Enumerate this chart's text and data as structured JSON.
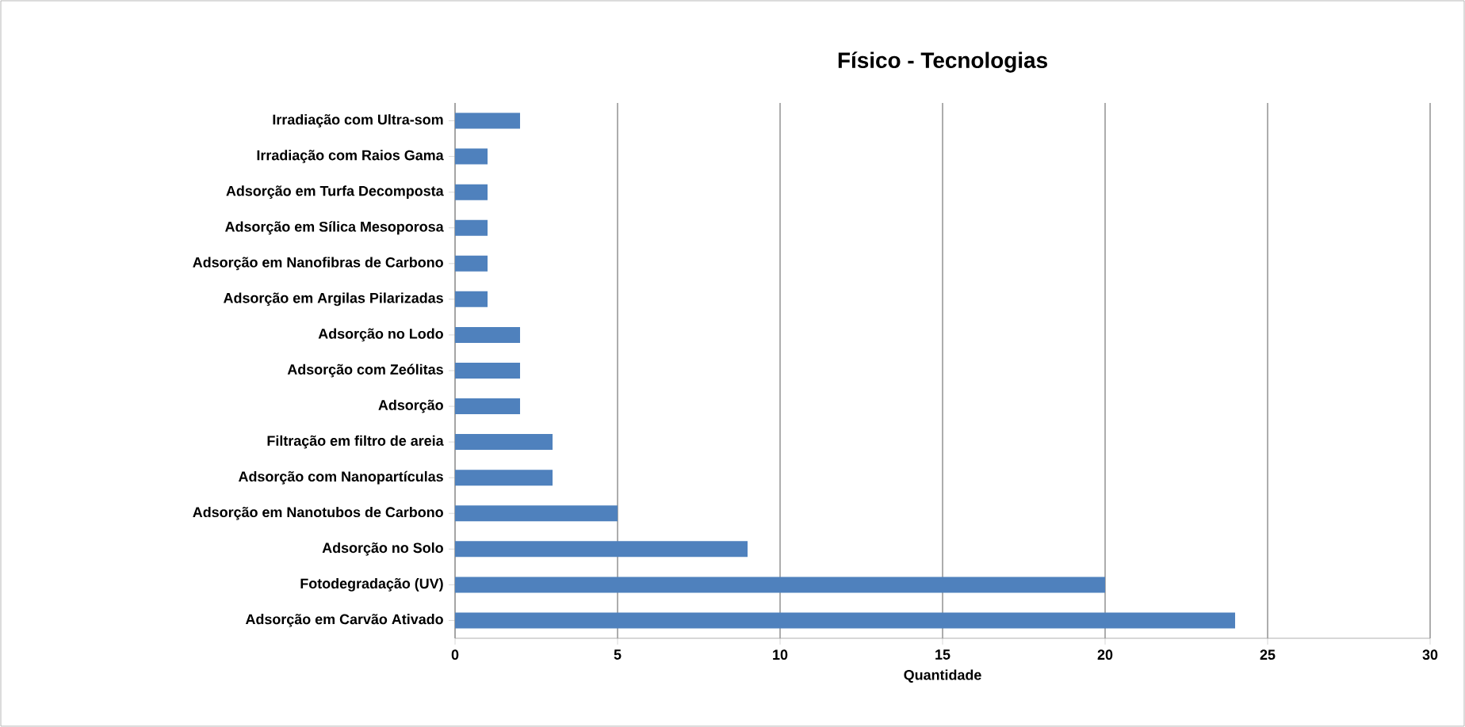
{
  "chart_data": {
    "type": "bar",
    "orientation": "horizontal",
    "title": "Físico - Tecnologias",
    "xlabel": "Quantidade",
    "categories": [
      "Irradiação com Ultra-som",
      "Irradiação com Raios Gama",
      "Adsorção em Turfa Decomposta",
      "Adsorção em Sílica Mesoporosa",
      "Adsorção em Nanofibras de Carbono",
      "Adsorção em Argilas Pilarizadas",
      "Adsorção no Lodo",
      "Adsorção com Zeólitas",
      "Adsorção",
      "Filtração em filtro de areia",
      "Adsorção com Nanopartículas",
      "Adsorção em Nanotubos de Carbono",
      "Adsorção no Solo",
      "Fotodegradação (UV)",
      "Adsorção em Carvão Ativado"
    ],
    "values": [
      2,
      1,
      1,
      1,
      1,
      1,
      2,
      2,
      2,
      3,
      3,
      5,
      9,
      20,
      24
    ],
    "color": "#4f81bd",
    "xlim": [
      0,
      30
    ],
    "xticks": [
      0,
      5,
      10,
      15,
      20,
      25,
      30
    ],
    "grid": "x"
  }
}
